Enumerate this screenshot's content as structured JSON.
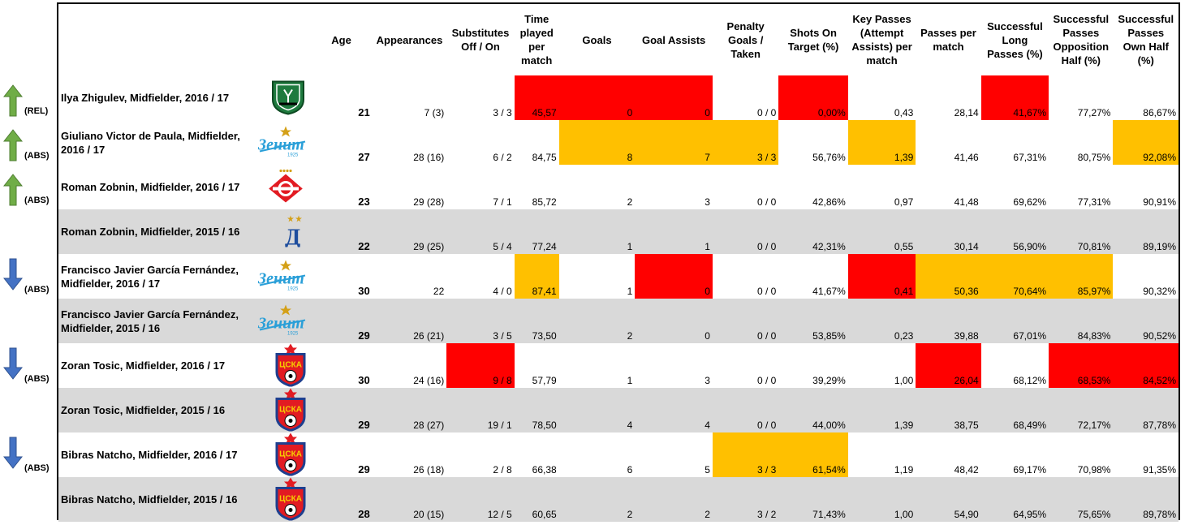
{
  "headers": {
    "age": "Age",
    "appearances": "Appearances",
    "subs": "Substitutes Off / On",
    "time": "Time played per match",
    "goals": "Goals",
    "assists": "Goal Assists",
    "penalty": "Penalty Goals / Taken",
    "shots": "Shots On Target (%)",
    "keypasses": "Key Passes (Attempt Assists) per match",
    "passes": "Passes per match",
    "long": "Successful Long Passes (%)",
    "opp": "Successful Passes Opposition Half (%)",
    "own": "Successful Passes Own Half (%)"
  },
  "colors": {
    "red": "#ff0000",
    "orange": "#ffc000",
    "gray_row": "#d9d9d9",
    "arrow_green": "#70ad47",
    "arrow_blue": "#4472c4"
  },
  "rows": [
    {
      "arrow": "up",
      "tag": "(REL)",
      "name": "Ilya Zhigulev, Midfielder, 2016 / 17",
      "logo": "krasnodar-logo",
      "age": "21",
      "appearances": "7 (3)",
      "subs": "3 / 3",
      "time": "45,57",
      "goals": "0",
      "assists": "0",
      "penalty": "0 / 0",
      "shots": "0,00%",
      "keypasses": "0,43",
      "passes": "28,14",
      "long": "41,67%",
      "opp": "77,27%",
      "own": "86,67%",
      "hl": {
        "time": "red",
        "goals": "red",
        "assists": "red",
        "shots": "red",
        "long": "red"
      }
    },
    {
      "arrow": "up",
      "tag": "(ABS)",
      "name": "Giuliano Victor de Paula, Midfielder, 2016 / 17",
      "logo": "zenit-logo",
      "age": "27",
      "appearances": "28 (16)",
      "subs": "6 / 2",
      "time": "84,75",
      "goals": "8",
      "assists": "7",
      "penalty": "3 / 3",
      "shots": "56,76%",
      "keypasses": "1,39",
      "passes": "41,46",
      "long": "67,31%",
      "opp": "80,75%",
      "own": "92,08%",
      "hl": {
        "goals": "orange",
        "assists": "orange",
        "penalty": "orange",
        "keypasses": "orange",
        "own": "orange"
      }
    },
    {
      "arrow": "up",
      "tag": "(ABS)",
      "name": "Roman Zobnin, Midfielder, 2016 / 17",
      "logo": "spartak-logo",
      "age": "23",
      "appearances": "29 (28)",
      "subs": "7 / 1",
      "time": "85,72",
      "goals": "2",
      "assists": "3",
      "penalty": "0 / 0",
      "shots": "42,86%",
      "keypasses": "0,97",
      "passes": "41,48",
      "long": "69,62%",
      "opp": "77,31%",
      "own": "90,91%",
      "hl": {}
    },
    {
      "arrow": "",
      "tag": "",
      "name": "Roman Zobnin, Midfielder, 2015 / 16",
      "logo": "dynamo-logo",
      "age": "22",
      "appearances": "29 (25)",
      "subs": "5 / 4",
      "time": "77,24",
      "goals": "1",
      "assists": "1",
      "penalty": "0 / 0",
      "shots": "42,31%",
      "keypasses": "0,55",
      "passes": "30,14",
      "long": "56,90%",
      "opp": "70,81%",
      "own": "89,19%",
      "hl": {}
    },
    {
      "arrow": "down",
      "tag": "(ABS)",
      "name": "Francisco Javier García Fernández, Midfielder, 2016 / 17",
      "logo": "zenit-logo",
      "age": "30",
      "appearances": "22",
      "subs": "4 / 0",
      "time": "87,41",
      "goals": "1",
      "assists": "0",
      "penalty": "0 / 0",
      "shots": "41,67%",
      "keypasses": "0,41",
      "passes": "50,36",
      "long": "70,64%",
      "opp": "85,97%",
      "own": "90,32%",
      "hl": {
        "time": "orange",
        "assists": "red",
        "keypasses": "red",
        "passes": "orange",
        "long": "orange",
        "opp": "orange"
      }
    },
    {
      "arrow": "",
      "tag": "",
      "name": "Francisco Javier García Fernández, Midfielder, 2015 / 16",
      "logo": "zenit-logo",
      "age": "29",
      "appearances": "26 (21)",
      "subs": "3 / 5",
      "time": "73,50",
      "goals": "2",
      "assists": "0",
      "penalty": "0 / 0",
      "shots": "53,85%",
      "keypasses": "0,23",
      "passes": "39,88",
      "long": "67,01%",
      "opp": "84,83%",
      "own": "90,52%",
      "hl": {}
    },
    {
      "arrow": "down",
      "tag": "(ABS)",
      "name": "Zoran Tosic, Midfielder, 2016 / 17",
      "logo": "cska-logo",
      "age": "30",
      "appearances": "24 (16)",
      "subs": "9 / 8",
      "time": "57,79",
      "goals": "1",
      "assists": "3",
      "penalty": "0 / 0",
      "shots": "39,29%",
      "keypasses": "1,00",
      "passes": "26,04",
      "long": "68,12%",
      "opp": "68,53%",
      "own": "84,52%",
      "hl": {
        "subs": "red",
        "passes": "red",
        "opp": "red",
        "own": "red"
      }
    },
    {
      "arrow": "",
      "tag": "",
      "name": "Zoran Tosic, Midfielder, 2015 / 16",
      "logo": "cska-logo",
      "age": "29",
      "appearances": "28 (27)",
      "subs": "19 / 1",
      "time": "78,50",
      "goals": "4",
      "assists": "4",
      "penalty": "0 / 0",
      "shots": "44,00%",
      "keypasses": "1,39",
      "passes": "38,75",
      "long": "68,49%",
      "opp": "72,17%",
      "own": "87,78%",
      "hl": {}
    },
    {
      "arrow": "down",
      "tag": "(ABS)",
      "name": "Bibras Natcho, Midfielder, 2016 / 17",
      "logo": "cska-logo",
      "age": "29",
      "appearances": "26 (18)",
      "subs": "2 / 8",
      "time": "66,38",
      "goals": "6",
      "assists": "5",
      "penalty": "3 / 3",
      "shots": "61,54%",
      "keypasses": "1,19",
      "passes": "48,42",
      "long": "69,17%",
      "opp": "70,98%",
      "own": "91,35%",
      "hl": {
        "penalty": "orange",
        "shots": "orange"
      }
    },
    {
      "arrow": "",
      "tag": "",
      "name": "Bibras Natcho, Midfielder, 2015 / 16",
      "logo": "cska-logo",
      "age": "28",
      "appearances": "20 (15)",
      "subs": "12 / 5",
      "time": "60,65",
      "goals": "2",
      "assists": "2",
      "penalty": "3 / 2",
      "shots": "71,43%",
      "keypasses": "1,00",
      "passes": "54,90",
      "long": "64,95%",
      "opp": "75,65%",
      "own": "89,78%",
      "hl": {}
    }
  ]
}
